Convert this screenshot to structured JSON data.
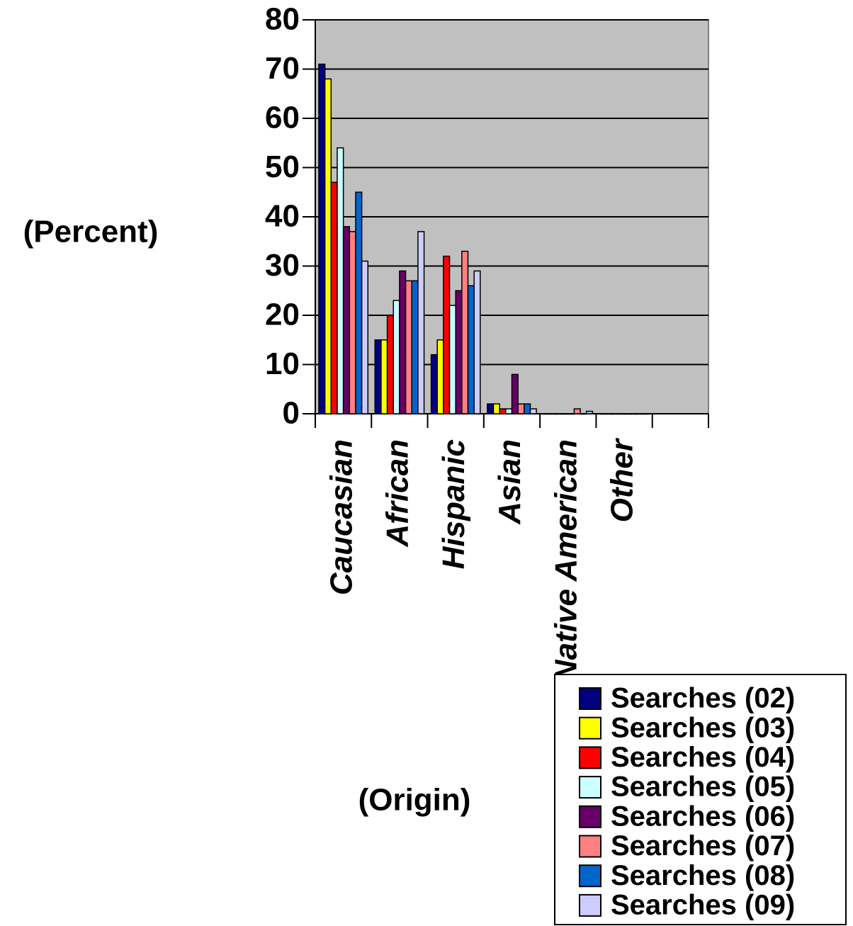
{
  "chart_data": {
    "type": "bar",
    "y_label": "(Percent)",
    "x_label": "(Origin)",
    "categories": [
      "Caucasian",
      "African",
      "Hispanic",
      "Asian",
      "Native American",
      "Other",
      null
    ],
    "series": [
      {
        "name": "Searches (02)",
        "color": "#000080",
        "values": [
          71,
          15,
          12,
          2,
          0,
          0,
          null
        ]
      },
      {
        "name": "Searches (03)",
        "color": "#ffff00",
        "values": [
          68,
          15,
          15,
          2,
          0,
          0,
          null
        ]
      },
      {
        "name": "Searches (04)",
        "color": "#ff0000",
        "values": [
          47,
          20,
          32,
          1,
          0,
          0,
          null
        ]
      },
      {
        "name": "Searches (05)",
        "color": "#ccffff",
        "values": [
          54,
          23,
          22,
          1,
          0,
          0,
          null
        ]
      },
      {
        "name": "Searches (06)",
        "color": "#660066",
        "values": [
          38,
          29,
          25,
          8,
          0,
          0,
          null
        ]
      },
      {
        "name": "Searches (07)",
        "color": "#ff8080",
        "values": [
          37,
          27,
          33,
          2,
          1,
          0,
          null
        ]
      },
      {
        "name": "Searches (08)",
        "color": "#0066cc",
        "values": [
          45,
          27,
          26,
          2,
          0,
          0,
          null
        ]
      },
      {
        "name": "Searches (09)",
        "color": "#ccccff",
        "values": [
          31,
          37,
          29,
          1,
          0.5,
          0,
          null
        ]
      }
    ],
    "ylim": [
      0,
      80
    ],
    "yticks": [
      0,
      10,
      20,
      30,
      40,
      50,
      60,
      70,
      80
    ],
    "grid": true,
    "background": "#c0c0c0",
    "legend": "bottom-right"
  }
}
